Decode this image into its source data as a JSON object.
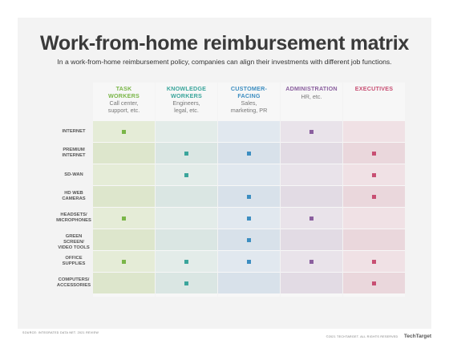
{
  "title": "Work-from-home reimbursement matrix",
  "subtitle": "In a work-from-home reimbursement policy, companies can align their investments with different job functions.",
  "columns": [
    {
      "title": "TASK\nWORKERS",
      "subtitle": "Call center,\nsupport, etc.",
      "color": "#7ab648",
      "cell_bg": "#e5ecd7",
      "cell_bg_alt": "#dde6cc"
    },
    {
      "title": "KNOWLEDGE\nWORKERS",
      "subtitle": "Engineers,\nlegal, etc.",
      "color": "#3aa59b",
      "cell_bg": "#e3ece9",
      "cell_bg_alt": "#dae6e3"
    },
    {
      "title": "CUSTOMER-\nFACING",
      "subtitle": "Sales,\nmarketing, PR",
      "color": "#3d8ec1",
      "cell_bg": "#e1e8ef",
      "cell_bg_alt": "#d8e1ea"
    },
    {
      "title": "ADMINISTRATION",
      "subtitle": "HR, etc.",
      "color": "#8a5f9e",
      "cell_bg": "#e9e3ea",
      "cell_bg_alt": "#e2dbe4"
    },
    {
      "title": "EXECUTIVES",
      "subtitle": "",
      "color": "#c84f73",
      "cell_bg": "#f0e1e5",
      "cell_bg_alt": "#ead7dc"
    }
  ],
  "rows": [
    {
      "label": "INTERNET",
      "marks": [
        true,
        false,
        false,
        true,
        false
      ]
    },
    {
      "label": "PREMIUM\nINTERNET",
      "marks": [
        false,
        true,
        true,
        false,
        true
      ]
    },
    {
      "label": "SD-WAN",
      "marks": [
        false,
        true,
        false,
        false,
        true
      ]
    },
    {
      "label": "HD WEB\nCAMERAS",
      "marks": [
        false,
        false,
        true,
        false,
        true
      ]
    },
    {
      "label": "HEADSETS/\nMICROPHONES",
      "marks": [
        true,
        false,
        true,
        true,
        false
      ]
    },
    {
      "label": "GREEN SCREEN/\nVIDEO TOOLS",
      "marks": [
        false,
        false,
        true,
        false,
        false
      ]
    },
    {
      "label": "OFFICE\nSUPPLIES",
      "marks": [
        true,
        true,
        true,
        true,
        true
      ]
    },
    {
      "label": "COMPUTERS/\nACCESSORIES",
      "marks": [
        false,
        true,
        false,
        false,
        true
      ]
    }
  ],
  "footer": {
    "source": "SOURCE: INTEGRATED DATA NET. 2021 REVIEW",
    "copyright": "©2021 TECHTARGET. ALL RIGHTS RESERVED",
    "brand": "TechTarget"
  }
}
